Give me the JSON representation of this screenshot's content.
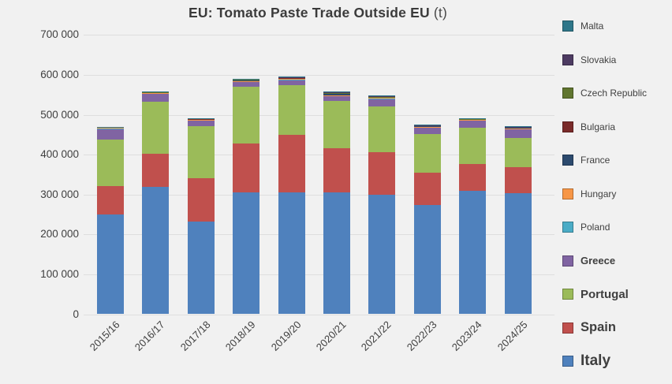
{
  "title": {
    "text": "EU: Tomato Paste Trade Outside EU",
    "suffix": "(t)"
  },
  "chart_data": {
    "type": "bar",
    "stacked": true,
    "title": "EU: Tomato Paste Trade Outside EU (t)",
    "xlabel": "",
    "ylabel": "",
    "ylim": [
      0,
      700000
    ],
    "ytick_step": 100000,
    "yticklabels": [
      "0",
      "100 000",
      "200 000",
      "300 000",
      "400 000",
      "500 000",
      "600 000",
      "700 000"
    ],
    "grid": true,
    "legend_position": "right",
    "legend_order_top_to_bottom": [
      "Malta",
      "Slovakia",
      "Czech Republic",
      "Bulgaria",
      "France",
      "Hungary",
      "Poland",
      "Greece",
      "Portugal",
      "Spain",
      "Italy"
    ],
    "categories": [
      "2015/16",
      "2016/17",
      "2017/18",
      "2018/19",
      "2019/20",
      "2020/21",
      "2021/22",
      "2022/23",
      "2023/24",
      "2024/25"
    ],
    "series": [
      {
        "name": "Italy",
        "color": "#4F81BD",
        "values": [
          251000,
          320000,
          233000,
          306000,
          306000,
          306000,
          300000,
          273000,
          310000,
          303000
        ]
      },
      {
        "name": "Spain",
        "color": "#C0504D",
        "values": [
          71000,
          82000,
          108000,
          123000,
          143000,
          111000,
          107000,
          81000,
          66000,
          65000
        ]
      },
      {
        "name": "Portugal",
        "color": "#9BBB59",
        "values": [
          115000,
          130000,
          130000,
          142000,
          126000,
          118000,
          114000,
          97000,
          92000,
          74000
        ]
      },
      {
        "name": "Greece",
        "color": "#8064A2",
        "values": [
          29000,
          22000,
          16000,
          13000,
          13000,
          13000,
          20000,
          16000,
          18000,
          22000
        ]
      },
      {
        "name": "Poland",
        "color": "#4BACC6",
        "values": [
          500,
          500,
          500,
          800,
          1000,
          1000,
          500,
          3000,
          800,
          2000
        ]
      },
      {
        "name": "Hungary",
        "color": "#F79646",
        "values": [
          300,
          300,
          300,
          300,
          500,
          500,
          300,
          200,
          300,
          200
        ]
      },
      {
        "name": "France",
        "color": "#2C4A6E",
        "values": [
          2000,
          2000,
          2000,
          2500,
          3000,
          4000,
          3000,
          3000,
          2500,
          3000
        ]
      },
      {
        "name": "Bulgaria",
        "color": "#7A2B2A",
        "values": [
          300,
          400,
          400,
          300,
          500,
          1000,
          400,
          200,
          200,
          200
        ]
      },
      {
        "name": "Czech Republic",
        "color": "#60752F",
        "values": [
          300,
          300,
          300,
          300,
          500,
          500,
          300,
          200,
          200,
          200
        ]
      },
      {
        "name": "Slovakia",
        "color": "#4D3B62",
        "values": [
          600,
          800,
          800,
          1000,
          1500,
          2000,
          2000,
          400,
          500,
          400
        ]
      },
      {
        "name": "Malta",
        "color": "#2E7689",
        "values": [
          500,
          700,
          700,
          1000,
          2000,
          2000,
          1500,
          2000,
          1500,
          1000
        ]
      }
    ]
  }
}
